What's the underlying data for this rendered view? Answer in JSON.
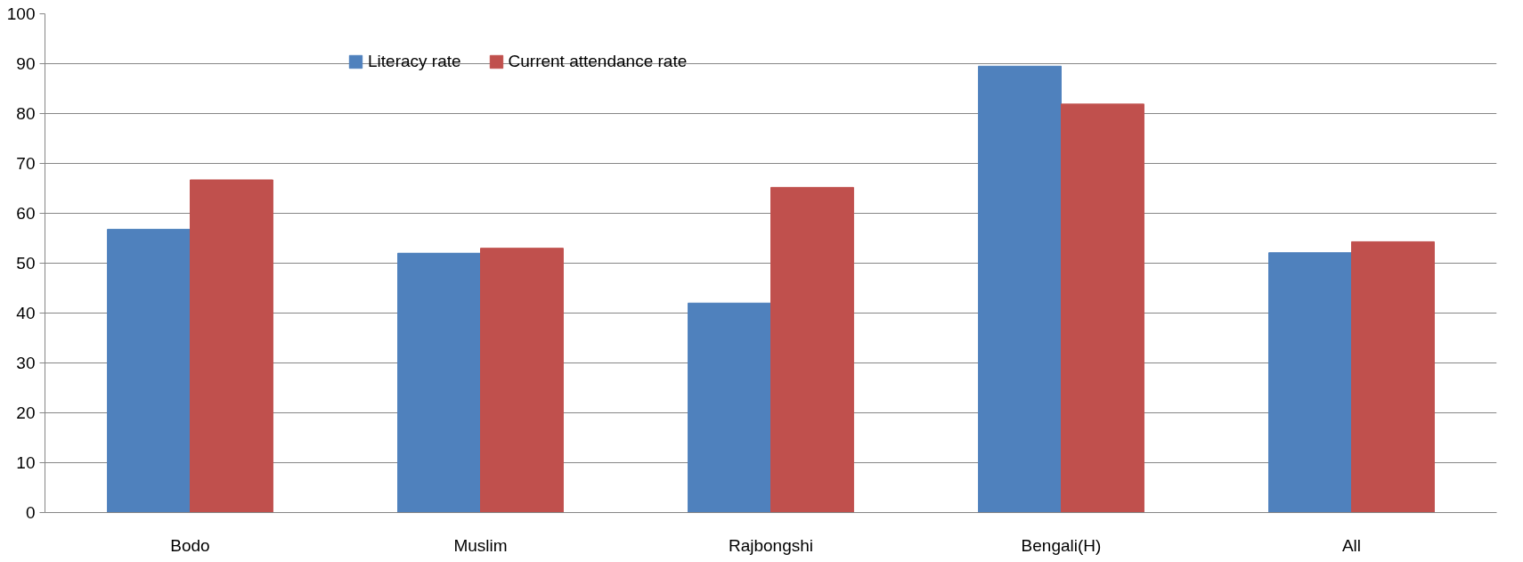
{
  "chart_data": {
    "type": "bar",
    "categories": [
      "Bodo",
      "Muslim",
      "Rajbongshi",
      "Bengali(H)",
      "All"
    ],
    "series": [
      {
        "name": "Literacy rate",
        "color": "#4f81bd",
        "values": [
          56.8,
          52.0,
          42.0,
          89.5,
          52.1
        ]
      },
      {
        "name": "Current attendance rate",
        "color": "#c0504d",
        "values": [
          66.7,
          53.0,
          65.2,
          81.9,
          54.3
        ]
      }
    ],
    "ylim": [
      0,
      100
    ],
    "yticks": [
      0,
      10,
      20,
      30,
      40,
      50,
      60,
      70,
      80,
      90,
      100
    ],
    "grid": "y",
    "legend": "top"
  }
}
